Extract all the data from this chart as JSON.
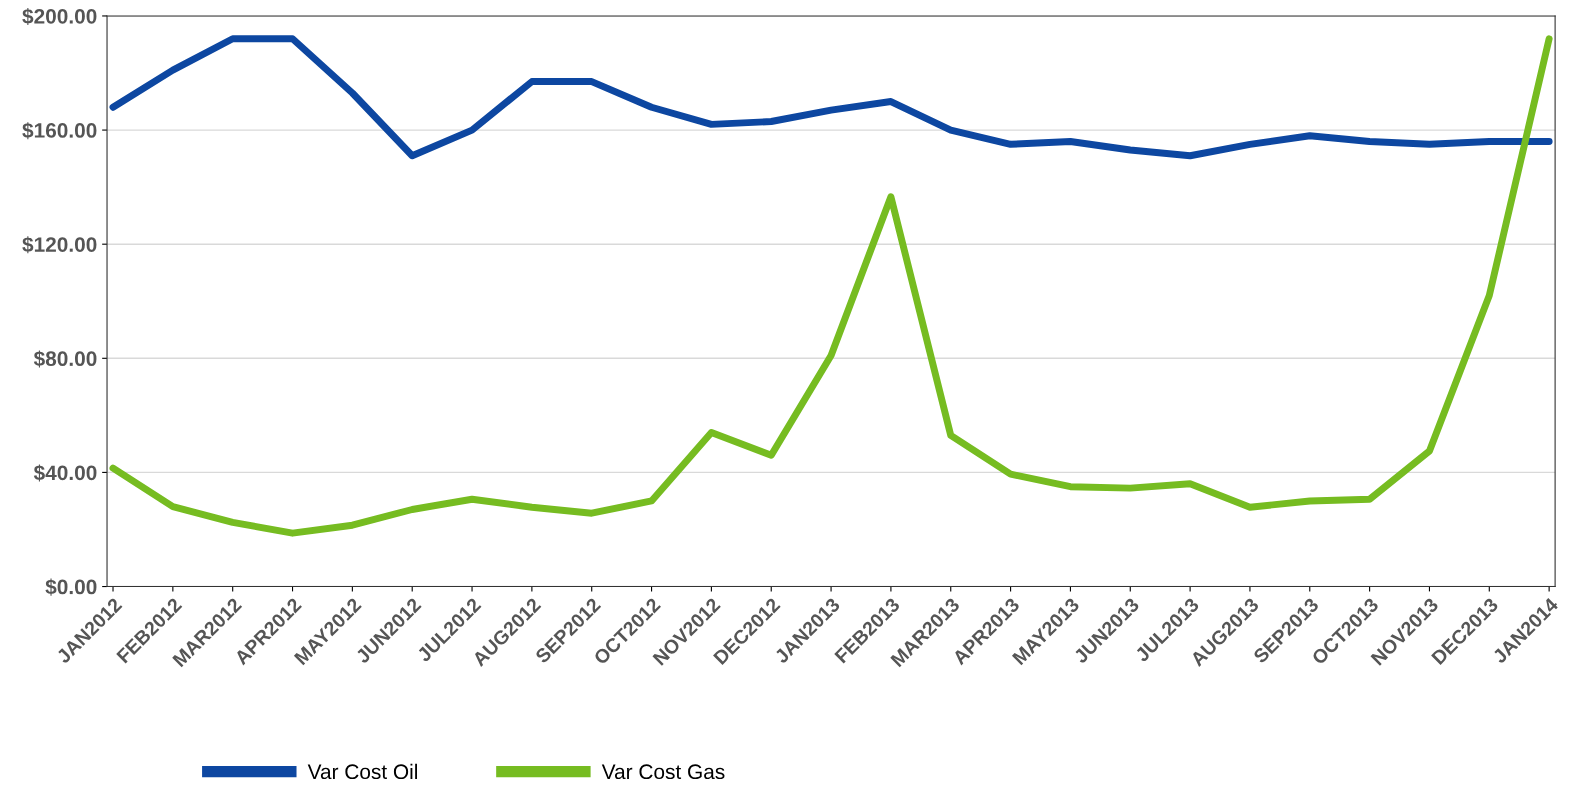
{
  "chart_data": {
    "type": "line",
    "categories": [
      "JAN2012",
      "FEB2012",
      "MAR2012",
      "APR2012",
      "MAY2012",
      "JUN2012",
      "JUL2012",
      "AUG2012",
      "SEP2012",
      "OCT2012",
      "NOV2012",
      "DEC2012",
      "JAN2013",
      "FEB2013",
      "MAR2013",
      "APR2013",
      "MAY2013",
      "JUN2013",
      "JUL2013",
      "AUG2013",
      "SEP2013",
      "OCT2013",
      "NOV2013",
      "DEC2013",
      "JAN2014"
    ],
    "series": [
      {
        "name": "Var Cost Oil",
        "color": "#0d47a1",
        "values": [
          168,
          181,
          192,
          192,
          173,
          151,
          160,
          177,
          177,
          168,
          162,
          163,
          167,
          170,
          160,
          155,
          156,
          153,
          151,
          155,
          158,
          156,
          155,
          156,
          156
        ]
      },
      {
        "name": "Var Cost Gas",
        "color": "#76bc21",
        "values": [
          41.5,
          28,
          22.5,
          18.7,
          21.5,
          27,
          30.6,
          27.8,
          25.7,
          30,
          54,
          46,
          81,
          136.6,
          53,
          39.4,
          35,
          34.5,
          36,
          27.8,
          30,
          30.6,
          47.5,
          102,
          192
        ]
      }
    ],
    "ylim": [
      0,
      200
    ],
    "yticks": [
      {
        "value": 0,
        "label": "$0.00"
      },
      {
        "value": 40,
        "label": "$40.00"
      },
      {
        "value": 80,
        "label": "$80.00"
      },
      {
        "value": 120,
        "label": "$120.00"
      },
      {
        "value": 160,
        "label": "$160.00"
      },
      {
        "value": 200,
        "label": "$200.00"
      }
    ],
    "grid": "y",
    "legend": "bottom",
    "marker": "none",
    "line_style": "solid"
  }
}
